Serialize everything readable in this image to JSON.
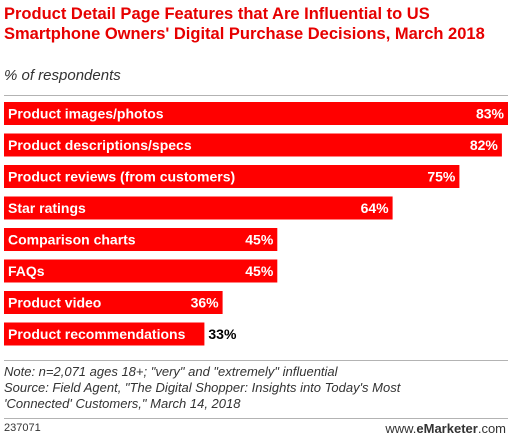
{
  "chart_data": {
    "type": "bar",
    "orientation": "horizontal",
    "title": "Product Detail Page Features that Are Influential to US Smartphone Owners' Digital Purchase Decisions, March 2018",
    "subtitle": "% of respondents",
    "categories": [
      "Product images/photos",
      "Product descriptions/specs",
      "Product reviews (from customers)",
      "Star ratings",
      "Comparison charts",
      "FAQs",
      "Product video",
      "Product recommendations"
    ],
    "values": [
      83,
      82,
      75,
      64,
      45,
      45,
      36,
      33
    ],
    "value_suffix": "%",
    "xlim": [
      0,
      83
    ],
    "bar_color": "#ff0000",
    "grid": false,
    "legend": "none"
  },
  "notes": {
    "note": "Note: n=2,071 ages 18+; \"very\" and \"extremely\" influential",
    "source_line1": "Source: Field Agent, \"The Digital Shopper: Insights into Today's Most",
    "source_line2": "'Connected' Customers,\" March 14, 2018"
  },
  "footer": {
    "chart_id": "237071",
    "brand_prefix": "www.",
    "brand_name": "eMarketer",
    "brand_suffix": ".com"
  }
}
